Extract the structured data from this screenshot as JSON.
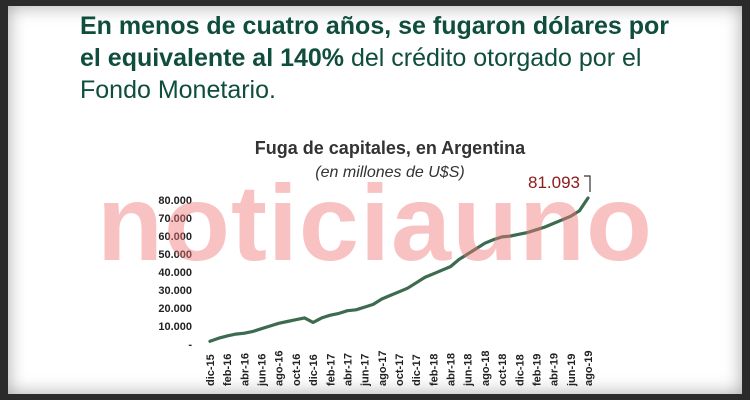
{
  "headline": {
    "part1": "En menos de cuatro años, se fugaron dólares por el equivalente al 140%",
    "part2": " del crédito otorgado por el Fondo Monetario."
  },
  "watermark": "noticiauno",
  "colors": {
    "headline": "#0f4d3c",
    "line": "#3d6b4f",
    "callout": "#8b1a1a",
    "watermark": "#f27878"
  },
  "chart_data": {
    "type": "line",
    "title": "Fuga de capitales, en Argentina",
    "subtitle": "(en millones de U$S)",
    "grid": false,
    "legend": "none",
    "ylim": [
      0,
      80000
    ],
    "yticks": [
      "-",
      "10.000",
      "20.000",
      "30.000",
      "40.000",
      "50.000",
      "60.000",
      "70.000",
      "80.000"
    ],
    "ytick_values": [
      0,
      10000,
      20000,
      30000,
      40000,
      50000,
      60000,
      70000,
      80000
    ],
    "xtick_labels": [
      "dic-15",
      "feb-16",
      "abr-16",
      "jun-16",
      "ago-16",
      "oct-16",
      "dic-16",
      "feb-17",
      "abr-17",
      "jun-17",
      "ago-17",
      "oct-17",
      "dic-17",
      "feb-18",
      "abr-18",
      "jun-18",
      "ago-18",
      "oct-18",
      "dic-18",
      "feb-19",
      "abr-19",
      "jun-19",
      "ago-19"
    ],
    "series": [
      {
        "values": [
          1500,
          3200,
          4500,
          5500,
          6000,
          7000,
          8500,
          10000,
          11500,
          12500,
          13500,
          14500,
          12000,
          14500,
          16000,
          17000,
          18500,
          19000,
          20500,
          22000,
          25000,
          27000,
          29000,
          31000,
          34000,
          37000,
          39000,
          41000,
          43000,
          47000,
          50000,
          53000,
          56000,
          58000,
          59500,
          60000,
          61000,
          62000,
          63500,
          65000,
          67000,
          69000,
          71000,
          74000,
          81093
        ]
      }
    ],
    "annotation": "81.093"
  }
}
